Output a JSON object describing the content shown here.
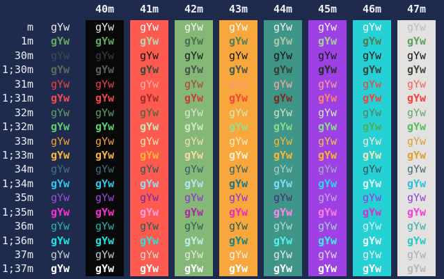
{
  "terminal": {
    "description": "ANSI escape code color test grid (foreground codes vs background codes)",
    "sample_text": "gYw",
    "palette": {
      "page_bg": "#1f2b4d",
      "header_text": "#edf0f5",
      "label_text": "#e9edf3"
    },
    "columns": [
      {
        "header": "",
        "bg": null
      },
      {
        "header": "40m",
        "bg": "#080808"
      },
      {
        "header": "41m",
        "bg": "#ff5a50"
      },
      {
        "header": "42m",
        "bg": "#85b877"
      },
      {
        "header": "43m",
        "bg": "#f8a73c"
      },
      {
        "header": "44m",
        "bg": "#3f9587"
      },
      {
        "header": "45m",
        "bg": "#9d40e4"
      },
      {
        "header": "46m",
        "bg": "#26d1d5"
      },
      {
        "header": "47m",
        "bg": "#e3e2e0"
      }
    ],
    "rows": [
      {
        "label": "m",
        "bold": false,
        "cells": [
          "#e9eaec",
          "#ececec",
          "#ffffff",
          "#f5f5f0",
          "#fbfbf8",
          "#f2f4f2",
          "#f4f2f6",
          "#fdfefe",
          "#b9bdc3"
        ]
      },
      {
        "label": "1m",
        "bold": true,
        "cells": [
          "#68a763",
          "#67a763",
          "#b7d7ae",
          "#4e7050",
          "#567c58",
          "#a9c9a1",
          "#a6cf9e",
          "#517b50",
          "#5d9e60"
        ]
      },
      {
        "label": "30m",
        "bold": false,
        "cells": [
          "#434750",
          "#393d40",
          "#131313",
          "#161616",
          "#131313",
          "#111111",
          "#181818",
          "#131313",
          "#0f0f0f"
        ]
      },
      {
        "label": "1;30m",
        "bold": true,
        "cells": [
          "#5d6a60",
          "#56645a",
          "#3f4a42",
          "#4a564a",
          "#44584e",
          "#364234",
          "#272f22",
          "#3a463c",
          "#3e4840"
        ]
      },
      {
        "label": "31m",
        "bold": false,
        "cells": [
          "#ef4143",
          "#ee4243",
          "#ffada7",
          "#a84038",
          "#fb9487",
          "#ffa8a0",
          "#ffa096",
          "#e74442",
          "#f2625c"
        ]
      },
      {
        "label": "1;31m",
        "bold": true,
        "cells": [
          "#f54a4a",
          "#f34747",
          "#a03028",
          "#c63e34",
          "#f64438",
          "#7e2a24",
          "#fc8572",
          "#f04240",
          "#f04038"
        ]
      },
      {
        "label": "32m",
        "bold": false,
        "cells": [
          "#61a06c",
          "#5fa06b",
          "#356b40",
          "#d6e8cc",
          "#d5eab8",
          "#cde4c2",
          "#cfeec5",
          "#547e60",
          "#63a468"
        ]
      },
      {
        "label": "1;32m",
        "bold": true,
        "cells": [
          "#5ece71",
          "#5cd073",
          "#c6e8ba",
          "#cdeabf",
          "#a0dc8c",
          "#88d98c",
          "#8ade8e",
          "#4caf57",
          "#55bb60"
        ]
      },
      {
        "label": "33m",
        "bold": false,
        "cells": [
          "#f2a43c",
          "#f1a43c",
          "#fce4ae",
          "#eee0b0",
          "#f7ecc3",
          "#f5ba35",
          "#fbc045",
          "#f2ecd2",
          "#d99e34"
        ]
      },
      {
        "label": "1;33m",
        "bold": true,
        "cells": [
          "#fdb43e",
          "#fcb43e",
          "#feb238",
          "#f3d9a2",
          "#f9eecb",
          "#fdb532",
          "#ffb42c",
          "#f4e4b4",
          "#dda12e"
        ]
      },
      {
        "label": "34m",
        "bold": false,
        "cells": [
          "#41737e",
          "#3f717c",
          "#265a60",
          "#2e6062",
          "#266269",
          "#aaccca",
          "#a0b1c2",
          "#33555c",
          "#3f6b70"
        ]
      },
      {
        "label": "1;34m",
        "bold": true,
        "cells": [
          "#30c7e8",
          "#2dc7e8",
          "#99d6f0",
          "#aee6f2",
          "#1d7585",
          "#7adef2",
          "#30d5ef",
          "#d5f1f5",
          "#2cc0e0"
        ]
      },
      {
        "label": "35m",
        "bold": false,
        "cells": [
          "#9b4fe0",
          "#994ce2",
          "#6a2fa0",
          "#8a2fd8",
          "#8c31d9",
          "#45306e",
          "#c4aae0",
          "#9935e0",
          "#8c42cf"
        ]
      },
      {
        "label": "1;35m",
        "bold": true,
        "cells": [
          "#fb30d2",
          "#fb2ed2",
          "#ff9ce5",
          "#a82aa0",
          "#ea2cc0",
          "#ff86e8",
          "#ff7ce2",
          "#da2ec8",
          "#f63cda"
        ]
      },
      {
        "label": "36m",
        "bold": false,
        "cells": [
          "#2cb4b8",
          "#29b3b8",
          "#226058",
          "#266058",
          "#235f56",
          "#b0dbd5",
          "#9fd0d8",
          "#d6f2ee",
          "#38aaa5"
        ]
      },
      {
        "label": "1;36m",
        "bold": true,
        "cells": [
          "#1fe4e1",
          "#1ce4e1",
          "#25e2de",
          "#b8efe8",
          "#188580",
          "#52f0e8",
          "#3feee8",
          "#e8fbf8",
          "#22cac6"
        ]
      },
      {
        "label": "37m",
        "bold": false,
        "cells": [
          "#c7cdd6",
          "#c5cbd4",
          "#e6d8d5",
          "#e5e8e0",
          "#f2efe8",
          "#e2eae8",
          "#ddd8e8",
          "#e8f0f0",
          "#a9adb3"
        ]
      },
      {
        "label": "1;37m",
        "bold": true,
        "cells": [
          "#ffffff",
          "#fefefe",
          "#ffffff",
          "#ffffff",
          "#ffffff",
          "#ffffff",
          "#ffffff",
          "#ffffff",
          "#b4b9bf"
        ]
      }
    ]
  }
}
